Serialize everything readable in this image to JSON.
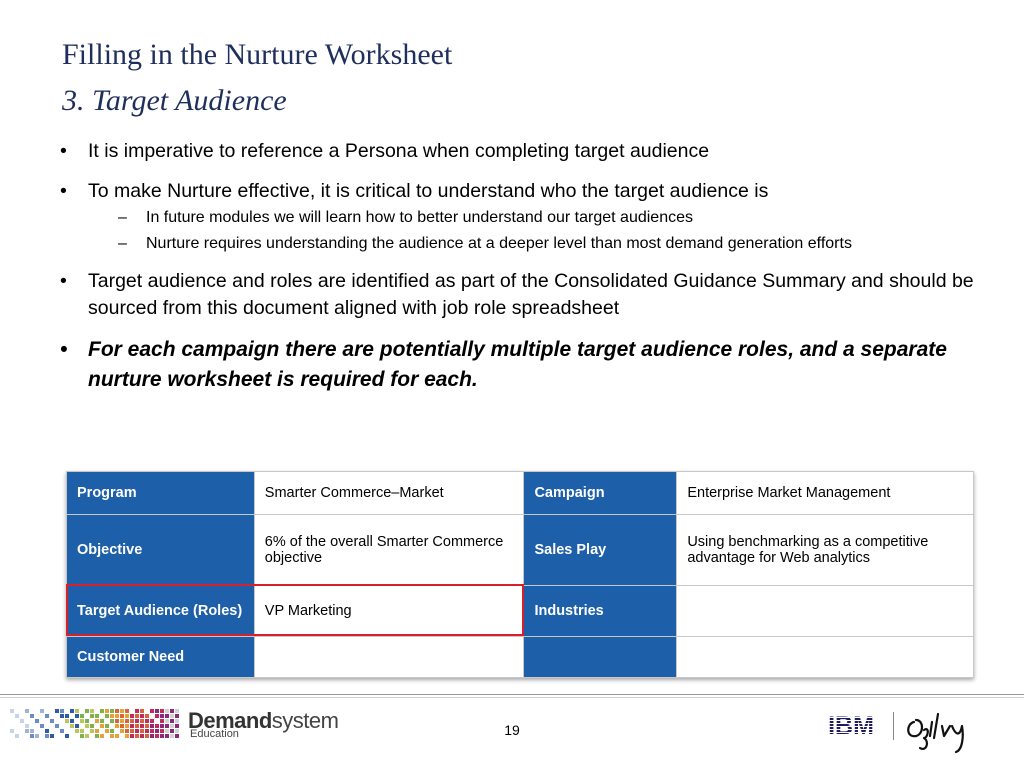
{
  "slide": {
    "title": "Filling in the Nurture Worksheet",
    "subtitle": "3. Target Audience",
    "page_number": "19"
  },
  "bullets": [
    {
      "text": "It is imperative to reference a Persona when completing target audience",
      "emphasis": false,
      "subs": []
    },
    {
      "text": "To make Nurture effective, it is critical to understand who the target audience is",
      "emphasis": false,
      "subs": [
        "In future modules we will learn how to better understand our target audiences",
        "Nurture requires understanding the audience at a deeper level than most demand generation efforts"
      ]
    },
    {
      "text": "Target audience and roles are identified as part of the Consolidated Guidance Summary and should be sourced from this document aligned with job role spreadsheet",
      "emphasis": false,
      "subs": []
    },
    {
      "text": "For each campaign there are potentially multiple target audience roles, and a separate nurture worksheet is required for each.",
      "emphasis": true,
      "subs": []
    }
  ],
  "bullet_marks": {
    "dot": "•",
    "dash": "–"
  },
  "worksheet": {
    "rows": [
      {
        "label1": "Program",
        "value1": "Smarter Commerce–Market",
        "label2": "Campaign",
        "value2": "Enterprise Market Management"
      },
      {
        "label1": "Objective",
        "value1": "6% of the overall Smarter Commerce objective",
        "label2": "Sales Play",
        "value2": "Using benchmarking as a competitive advantage for Web analytics"
      },
      {
        "label1": "Target Audience (Roles)",
        "value1": "VP Marketing",
        "label2": "Industries",
        "value2": ""
      },
      {
        "label1": "Customer Need",
        "value1": "",
        "label2": "",
        "value2": ""
      }
    ],
    "highlighted_row": 2
  },
  "footer": {
    "brand_bold": "Demand",
    "brand_regular": "system",
    "brand_sub": "Education",
    "ibm": "IBM",
    "ogilvy": "Ogilvy"
  },
  "colors": {
    "title": "#1f2f5c",
    "header_cell": "#1d5fa8",
    "highlight_border": "#d8202a"
  }
}
